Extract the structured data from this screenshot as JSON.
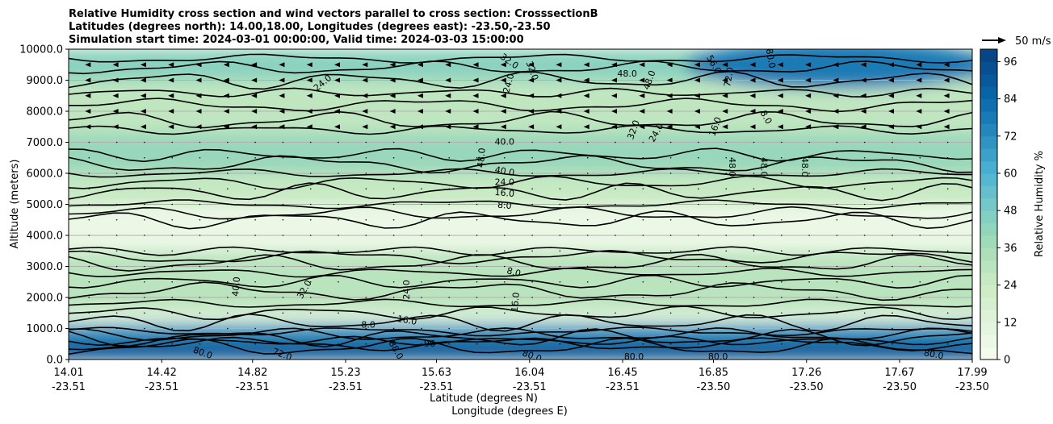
{
  "chart_data": {
    "type": "heatmap",
    "title_lines": [
      "Relative Humidity cross section and wind vectors parallel to cross section: CrosssectionB",
      "Latitudes (degrees north): 14.00,18.00, Longitudes (degrees east): -23.50,-23.50",
      "Simulation start time: 2024-03-01 00:00:00, Valid time: 2024-03-03 15:00:00"
    ],
    "ylabel": "Altitude (meters)",
    "xlabel_lat": "Latitude (degrees N)",
    "xlabel_lon": "Longitude (degrees E)",
    "ylim": [
      0,
      10000
    ],
    "y_ticks": [
      "0.0",
      "1000.0",
      "2000.0",
      "3000.0",
      "4000.0",
      "5000.0",
      "6000.0",
      "7000.0",
      "8000.0",
      "9000.0",
      "10000.0"
    ],
    "x_ticks": [
      {
        "lat": "14.01",
        "lon": "-23.51"
      },
      {
        "lat": "14.42",
        "lon": "-23.51"
      },
      {
        "lat": "14.82",
        "lon": "-23.51"
      },
      {
        "lat": "15.23",
        "lon": "-23.51"
      },
      {
        "lat": "15.63",
        "lon": "-23.51"
      },
      {
        "lat": "16.04",
        "lon": "-23.51"
      },
      {
        "lat": "16.45",
        "lon": "-23.51"
      },
      {
        "lat": "16.85",
        "lon": "-23.50"
      },
      {
        "lat": "17.26",
        "lon": "-23.50"
      },
      {
        "lat": "17.67",
        "lon": "-23.50"
      },
      {
        "lat": "17.99",
        "lon": "-23.50"
      }
    ],
    "colorbar": {
      "label": "Relative Humidity %",
      "range": [
        0,
        100
      ],
      "tick_labels": [
        "0",
        "12",
        "24",
        "36",
        "48",
        "60",
        "72",
        "84",
        "96"
      ]
    },
    "wind_key": "50 m/s",
    "humidity_bands": [
      {
        "from": 0,
        "to": 600,
        "rh": 92
      },
      {
        "from": 600,
        "to": 1150,
        "rh": 70
      },
      {
        "from": 1150,
        "to": 1600,
        "rh": 12
      },
      {
        "from": 1600,
        "to": 3500,
        "rh": 30
      },
      {
        "from": 3500,
        "to": 5000,
        "rh": 6
      },
      {
        "from": 5000,
        "to": 6000,
        "rh": 26
      },
      {
        "from": 6000,
        "to": 7300,
        "rh": 40
      },
      {
        "from": 7300,
        "to": 9000,
        "rh": 28
      },
      {
        "from": 9000,
        "to": 10000,
        "rh": 44
      }
    ],
    "contour_labels": [
      {
        "text": "32.0",
        "lat": 15.95,
        "alt": 9600,
        "rot": 35
      },
      {
        "text": "32.0",
        "lat": 16.05,
        "alt": 9300,
        "rot": 70
      },
      {
        "text": "24.0",
        "lat": 15.95,
        "alt": 8900,
        "rot": -75
      },
      {
        "text": "24.0",
        "lat": 15.13,
        "alt": 8900,
        "rot": -40
      },
      {
        "text": "48.0",
        "lat": 16.47,
        "alt": 9200,
        "rot": 0
      },
      {
        "text": "48.0",
        "lat": 16.57,
        "alt": 9000,
        "rot": -70
      },
      {
        "text": "56.0",
        "lat": 16.85,
        "alt": 9500,
        "rot": 60
      },
      {
        "text": "72.0",
        "lat": 16.92,
        "alt": 9100,
        "rot": -80
      },
      {
        "text": "80.0",
        "lat": 17.1,
        "alt": 9700,
        "rot": 80
      },
      {
        "text": "32.0",
        "lat": 16.5,
        "alt": 7400,
        "rot": -70
      },
      {
        "text": "24.0",
        "lat": 16.6,
        "alt": 7300,
        "rot": -60
      },
      {
        "text": "16.0",
        "lat": 16.86,
        "alt": 7500,
        "rot": -70
      },
      {
        "text": "8.0",
        "lat": 17.08,
        "alt": 7800,
        "rot": 60
      },
      {
        "text": "40.0",
        "lat": 15.93,
        "alt": 7000,
        "rot": 0
      },
      {
        "text": "48.0",
        "lat": 15.83,
        "alt": 6500,
        "rot": -85
      },
      {
        "text": "48.0",
        "lat": 16.93,
        "alt": 6200,
        "rot": 90
      },
      {
        "text": "48.0",
        "lat": 17.07,
        "alt": 6200,
        "rot": 90
      },
      {
        "text": "48.0",
        "lat": 17.25,
        "alt": 6200,
        "rot": 90
      },
      {
        "text": "40.0",
        "lat": 15.93,
        "alt": 6050,
        "rot": 10
      },
      {
        "text": "24.0",
        "lat": 15.93,
        "alt": 5700,
        "rot": 0
      },
      {
        "text": "16.0",
        "lat": 15.93,
        "alt": 5350,
        "rot": 5
      },
      {
        "text": "8.0",
        "lat": 15.93,
        "alt": 4950,
        "rot": 5
      },
      {
        "text": "8.0",
        "lat": 15.97,
        "alt": 2800,
        "rot": 15
      },
      {
        "text": "40.0",
        "lat": 14.75,
        "alt": 2350,
        "rot": -85
      },
      {
        "text": "32.0",
        "lat": 15.05,
        "alt": 2250,
        "rot": -60
      },
      {
        "text": "24.0",
        "lat": 15.5,
        "alt": 2250,
        "rot": -90
      },
      {
        "text": "16.0",
        "lat": 15.98,
        "alt": 1850,
        "rot": -85
      },
      {
        "text": "16.0",
        "lat": 15.5,
        "alt": 1250,
        "rot": 10
      },
      {
        "text": "8.0",
        "lat": 15.33,
        "alt": 1100,
        "rot": 0
      },
      {
        "text": "80.0",
        "lat": 14.6,
        "alt": 200,
        "rot": 20
      },
      {
        "text": "72.0",
        "lat": 14.95,
        "alt": 150,
        "rot": 20
      },
      {
        "text": "88.0",
        "lat": 15.45,
        "alt": 300,
        "rot": 60
      },
      {
        "text": "96",
        "lat": 15.6,
        "alt": 500,
        "rot": 0
      },
      {
        "text": "80.0",
        "lat": 16.05,
        "alt": 100,
        "rot": 20
      },
      {
        "text": "80.0",
        "lat": 16.5,
        "alt": 80,
        "rot": 0
      },
      {
        "text": "80.0",
        "lat": 16.87,
        "alt": 80,
        "rot": 0
      },
      {
        "text": "80.0",
        "lat": 17.82,
        "alt": 150,
        "rot": 10
      }
    ]
  }
}
